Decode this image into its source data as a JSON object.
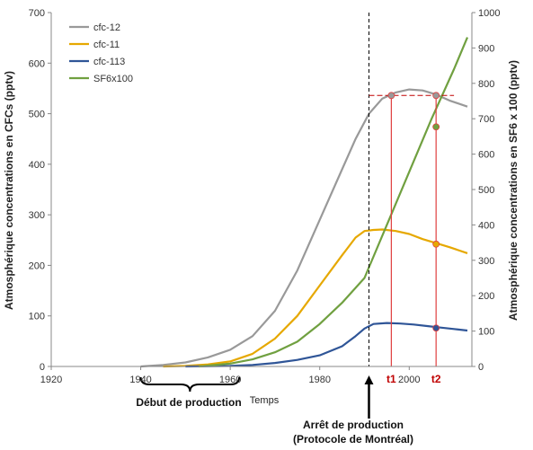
{
  "chart_data": {
    "type": "line",
    "xlabel": "Temps",
    "ylabel_left": "Atmosphérique concentrations en CFCs (pptv)",
    "ylabel_right": "Atmosphérique concentrations en SF6 x 100 (pptv)",
    "xlim": [
      1920,
      2014
    ],
    "ylim_left": [
      0,
      700
    ],
    "ylim_right": [
      0,
      1000
    ],
    "xticks": [
      "1920",
      "1940",
      "1960",
      "1980",
      "2000"
    ],
    "yticks_left": [
      "0",
      "100",
      "200",
      "300",
      "400",
      "500",
      "600",
      "700"
    ],
    "yticks_right": [
      "0",
      "100",
      "200",
      "300",
      "400",
      "500",
      "600",
      "700",
      "800",
      "900",
      "1000"
    ],
    "legend_position": "top-left",
    "series": [
      {
        "name": "cfc-12",
        "color": "#999999",
        "axis": "left",
        "x": [
          1940,
          1945,
          1950,
          1955,
          1960,
          1965,
          1970,
          1975,
          1980,
          1985,
          1988,
          1991,
          1994,
          1997,
          2000,
          2003,
          2006,
          2009,
          2013
        ],
        "y": [
          0,
          3,
          8,
          18,
          33,
          60,
          110,
          190,
          290,
          390,
          450,
          500,
          530,
          542,
          548,
          546,
          538,
          526,
          514
        ]
      },
      {
        "name": "cfc-11",
        "color": "#e6a800",
        "axis": "left",
        "x": [
          1945,
          1950,
          1955,
          1960,
          1965,
          1970,
          1975,
          1980,
          1985,
          1988,
          1990,
          1992,
          1994,
          1997,
          2000,
          2003,
          2006,
          2009,
          2013
        ],
        "y": [
          0,
          1,
          4,
          10,
          25,
          55,
          100,
          160,
          220,
          255,
          268,
          270,
          271,
          268,
          262,
          252,
          244,
          236,
          224
        ]
      },
      {
        "name": "cfc-113",
        "color": "#2f5597",
        "axis": "left",
        "x": [
          1950,
          1960,
          1965,
          1970,
          1975,
          1980,
          1985,
          1988,
          1990,
          1992,
          1995,
          1998,
          2001,
          2004,
          2007,
          2010,
          2013
        ],
        "y": [
          0,
          1,
          3,
          7,
          13,
          22,
          40,
          60,
          75,
          84,
          86,
          85,
          83,
          80,
          77,
          74,
          71
        ]
      },
      {
        "name": "SF6x100",
        "color": "#70a040",
        "axis": "right",
        "x": [
          1953,
          1960,
          1965,
          1970,
          1975,
          1980,
          1985,
          1990,
          1995,
          2000,
          2005,
          2010,
          2013
        ],
        "y": [
          0,
          8,
          20,
          40,
          70,
          120,
          180,
          250,
          400,
          550,
          700,
          840,
          930
        ]
      }
    ],
    "markers": {
      "t1_year": 1996,
      "t2_year": 2006,
      "t1_label": "t1",
      "t2_label": "t2",
      "reference_value_left": 536,
      "points": [
        {
          "series": "cfc-12",
          "x": 1996,
          "y": 536
        },
        {
          "series": "cfc-12",
          "x": 2006,
          "y": 536
        },
        {
          "series": "cfc-11",
          "x": 2006,
          "y": 242
        },
        {
          "series": "cfc-113",
          "x": 2006,
          "y": 76
        },
        {
          "series": "SF6x100",
          "x": 2006,
          "y": 677
        }
      ]
    },
    "stop_year": 1991,
    "annotations": {
      "production_start": "Début de production",
      "production_stop_line1": "Arrêt de production",
      "production_stop_line2": "(Protocole de Montréal)",
      "brace_start": 1940,
      "brace_end": 1962
    }
  }
}
